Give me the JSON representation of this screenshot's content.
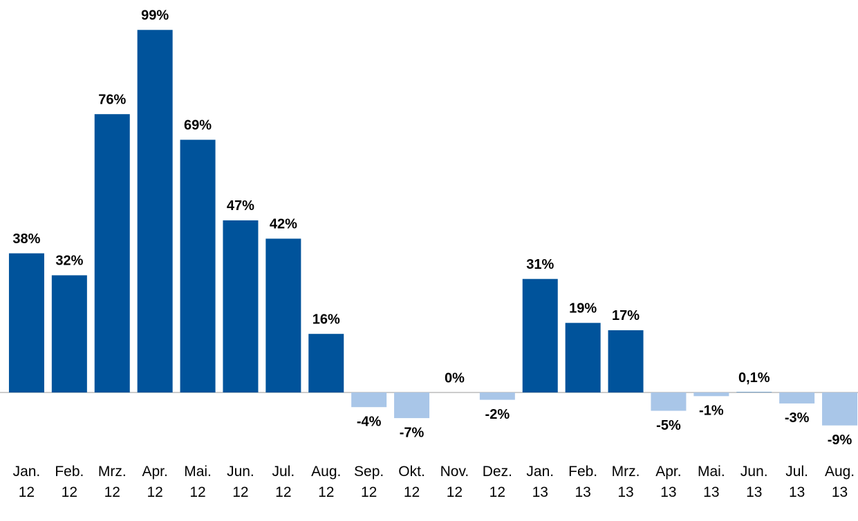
{
  "chart_data": {
    "type": "bar",
    "categories": [
      "Jan. 12",
      "Feb. 12",
      "Mrz. 12",
      "Apr. 12",
      "Mai. 12",
      "Jun. 12",
      "Jul. 12",
      "Aug. 12",
      "Sep. 12",
      "Okt. 12",
      "Nov. 12",
      "Dez. 12",
      "Jan. 13",
      "Feb. 13",
      "Mrz. 13",
      "Apr. 13",
      "Mai. 13",
      "Jun. 13",
      "Jul. 13",
      "Aug. 13"
    ],
    "values": [
      38,
      32,
      76,
      99,
      69,
      47,
      42,
      16,
      -4,
      -7,
      0,
      -2,
      31,
      19,
      17,
      -5,
      -1,
      0.1,
      -3,
      -9
    ],
    "value_labels": [
      "38%",
      "32%",
      "76%",
      "99%",
      "69%",
      "47%",
      "42%",
      "16%",
      "-4%",
      "-7%",
      "0%",
      "-2%",
      "31%",
      "19%",
      "17%",
      "-5%",
      "-1%",
      "0,1%",
      "-3%",
      "-9%"
    ],
    "color": "#00539b",
    "negative_color": "#a9c6e8",
    "ylim": [
      -15,
      105
    ]
  }
}
